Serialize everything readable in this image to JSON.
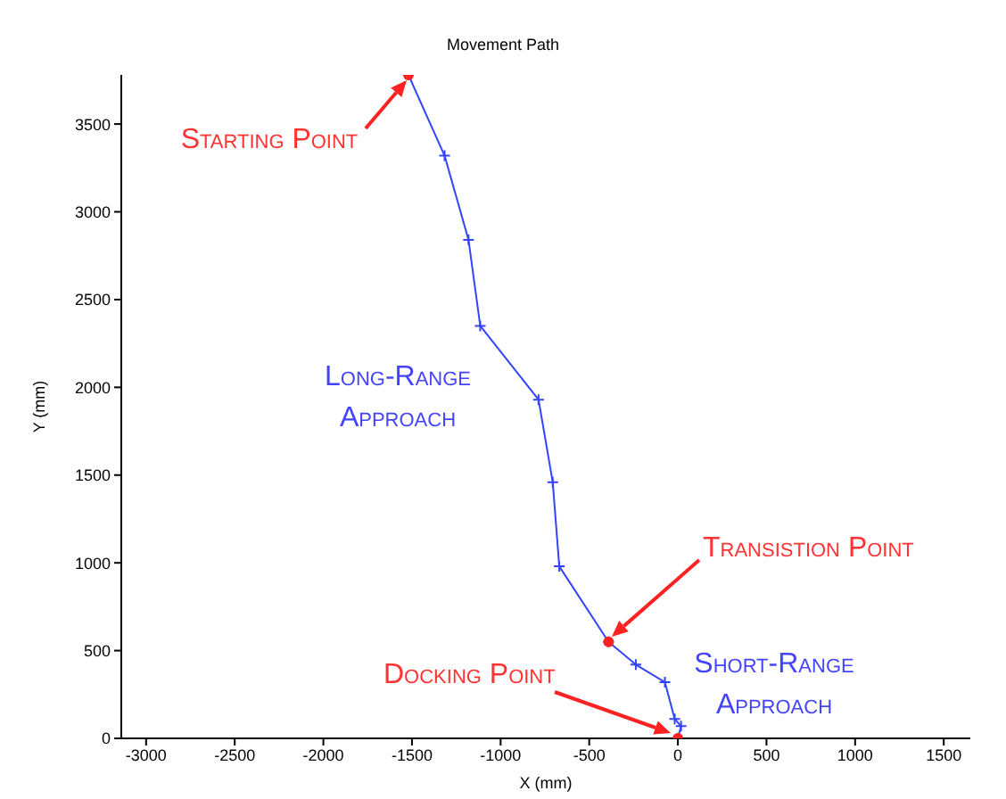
{
  "chart_data": {
    "type": "line",
    "title": "Movement Path",
    "xlabel": "X (mm)",
    "ylabel": "Y (mm)",
    "xlim": [
      -3140,
      1650
    ],
    "ylim": [
      0,
      3780
    ],
    "xticks": [
      -3000,
      -2500,
      -2000,
      -1500,
      -1000,
      -500,
      0,
      500,
      1000,
      1500
    ],
    "yticks": [
      0,
      500,
      1000,
      1500,
      2000,
      2500,
      3000,
      3500
    ],
    "grid": false,
    "legend": false,
    "series": [
      {
        "type": "line",
        "color": "#3344ff",
        "marker": "cross",
        "line_style": "solid",
        "x": [
          -1520,
          -1316,
          -1181,
          -1115,
          -786,
          -706,
          -669,
          -391,
          -237,
          -73,
          -18,
          18,
          0
        ],
        "values": [
          3780,
          3320,
          2840,
          2350,
          1930,
          1460,
          980,
          550,
          420,
          320,
          110,
          70,
          0
        ]
      },
      {
        "type": "scatter",
        "color": "#ff2222",
        "marker": "circle",
        "x": [
          -1520,
          -391,
          0
        ],
        "values": [
          3780,
          550,
          0
        ]
      }
    ],
    "annotations": [
      {
        "text": "Starting Point",
        "x": -1520,
        "y": 3780
      },
      "Long-Range Approach",
      "Transistion Point",
      "Short-Range Approach",
      "Docking Point"
    ]
  }
}
